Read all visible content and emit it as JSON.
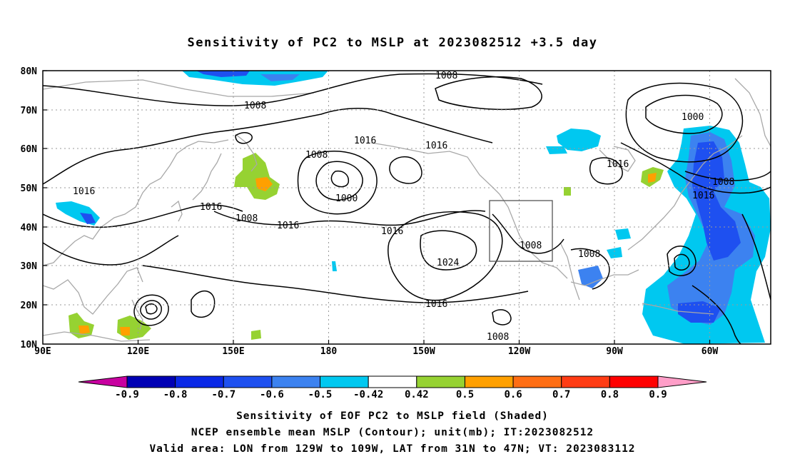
{
  "title": "Sensitivity of PC2 to MSLP at 2023082512 +3.5 day",
  "map": {
    "lat_labels": [
      "80N",
      "70N",
      "60N",
      "50N",
      "40N",
      "30N",
      "20N",
      "10N"
    ],
    "lon_labels": [
      "90E",
      "120E",
      "150E",
      "180",
      "150W",
      "120W",
      "90W",
      "60W"
    ],
    "contour_labels": [
      "1008",
      "1008",
      "1016",
      "1016",
      "1008",
      "1000",
      "1016",
      "1016",
      "1016",
      "1008",
      "1016",
      "1024",
      "1016",
      "1008",
      "1008",
      "1008",
      "1008",
      "1016",
      "1000",
      "1016"
    ],
    "valid_box": {
      "lon_from": "129W",
      "lon_to": "109W",
      "lat_from": "31N",
      "lat_to": "47N"
    }
  },
  "colorbar": {
    "labels": [
      "-0.9",
      "-0.8",
      "-0.7",
      "-0.6",
      "-0.5",
      "-0.42",
      "0.42",
      "0.5",
      "0.6",
      "0.7",
      "0.8",
      "0.9"
    ],
    "colors": [
      "#0000b4",
      "#0a28e6",
      "#1e50f0",
      "#3c82f0",
      "#00c8f0",
      "#ffffff",
      "#96d232",
      "#ffa000",
      "#ff6e14",
      "#ff3c14",
      "#ff0000"
    ],
    "low_triangle_color": "#c800a0",
    "high_triangle_color": "#ff9ec8"
  },
  "footer": {
    "line1": "Sensitivity of EOF PC2 to MSLP field (Shaded)",
    "line2": "NCEP ensemble mean MSLP (Contour); unit(mb); IT:2023082512",
    "line3": "Valid area: LON from 129W to 109W, LAT from 31N to 47N; VT: 2023083112"
  }
}
